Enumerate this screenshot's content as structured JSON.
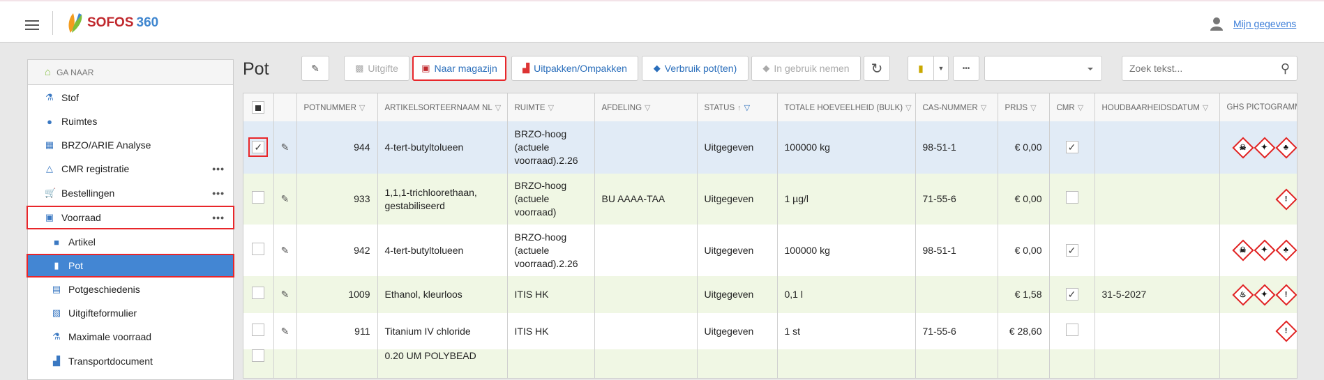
{
  "header": {
    "logo_text": "SOFOS",
    "logo_num": "360",
    "user_link": "Mijn gegevens"
  },
  "sidebar": {
    "goto": "GA NAAR",
    "items": [
      {
        "label": "Stof",
        "icon": "flask-icon",
        "glyph": "⚗",
        "more": false
      },
      {
        "label": "Ruimtes",
        "icon": "location-icon",
        "glyph": "●",
        "more": false
      },
      {
        "label": "BRZO/ARIE Analyse",
        "icon": "brzo-icon",
        "glyph": "▦",
        "more": false
      },
      {
        "label": "CMR registratie",
        "icon": "hazard-icon",
        "glyph": "△",
        "more": true
      },
      {
        "label": "Bestellingen",
        "icon": "cart-icon",
        "glyph": "🛒",
        "more": true
      },
      {
        "label": "Voorraad",
        "icon": "warehouse-icon",
        "glyph": "▣",
        "more": true,
        "boxed": true
      },
      {
        "label": "Artikel",
        "icon": "box-icon",
        "glyph": "■",
        "sub": true
      },
      {
        "label": "Pot",
        "icon": "pot-icon",
        "glyph": "▮",
        "sub": true,
        "active": true
      },
      {
        "label": "Potgeschiedenis",
        "icon": "history-icon",
        "glyph": "▤",
        "sub": true
      },
      {
        "label": "Uitgifteformulier",
        "icon": "form-icon",
        "glyph": "▧",
        "sub": true
      },
      {
        "label": "Maximale voorraad",
        "icon": "flask-icon",
        "glyph": "⚗",
        "sub": true
      },
      {
        "label": "Transportdocument",
        "icon": "truck-icon",
        "glyph": "▟",
        "sub": true
      }
    ]
  },
  "page": {
    "title": "Pot"
  },
  "toolbar": {
    "uitgifte": "Uitgifte",
    "naar_magazijn": "Naar magazijn",
    "uitpakken": "Uitpakken/Ompakken",
    "verbruik": "Verbruik pot(ten)",
    "in_gebruik": "In gebruik nemen",
    "more": "•••",
    "search_placeholder": "Zoek tekst...",
    "select_value": ""
  },
  "table": {
    "columns": [
      "",
      "",
      "POTNUMMER",
      "ARTIKELSORTEERNAAM NL",
      "RUIMTE",
      "AFDELING",
      "STATUS",
      "TOTALE HOEVEELHEID (BULK)",
      "CAS-NUMMER",
      "PRIJS",
      "CMR",
      "HOUDBAARHEIDSDATUM",
      "GHS PICTOGRAMMEN"
    ],
    "sort": {
      "column": "STATUS",
      "direction": "asc"
    },
    "rows": [
      {
        "selected": true,
        "potnummer": "944",
        "artikel": "4-tert-butyltolueen",
        "ruimte": "BRZO-hoog (actuele voorraad).2.26",
        "afdeling": "",
        "status": "Uitgegeven",
        "hoeveelheid": "100000 kg",
        "cas": "98-51-1",
        "prijs": "€ 0,00",
        "cmr": true,
        "houdbaarheid": "",
        "ghs": [
          "toxic",
          "health-hazard",
          "environment"
        ]
      },
      {
        "selected": false,
        "potnummer": "933",
        "artikel": "1,1,1-trichloorethaan, gestabiliseerd",
        "ruimte": "BRZO-hoog (actuele voorraad)",
        "afdeling": "BU AAAA-TAA",
        "status": "Uitgegeven",
        "hoeveelheid": "1 µg/l",
        "cas": "71-55-6",
        "prijs": "€ 0,00",
        "cmr": false,
        "houdbaarheid": "",
        "ghs": [
          "exclamation"
        ]
      },
      {
        "selected": false,
        "potnummer": "942",
        "artikel": "4-tert-butyltolueen",
        "ruimte": "BRZO-hoog (actuele voorraad).2.26",
        "afdeling": "",
        "status": "Uitgegeven",
        "hoeveelheid": "100000 kg",
        "cas": "98-51-1",
        "prijs": "€ 0,00",
        "cmr": true,
        "houdbaarheid": "",
        "ghs": [
          "toxic",
          "health-hazard",
          "environment"
        ]
      },
      {
        "selected": false,
        "potnummer": "1009",
        "artikel": "Ethanol, kleurloos",
        "ruimte": "ITIS HK",
        "afdeling": "",
        "status": "Uitgegeven",
        "hoeveelheid": "0,1 l",
        "cas": "",
        "prijs": "€ 1,58",
        "cmr": true,
        "houdbaarheid": "31-5-2027",
        "ghs": [
          "flammable",
          "health-hazard",
          "exclamation"
        ]
      },
      {
        "selected": false,
        "potnummer": "911",
        "artikel": "Titanium IV chloride",
        "ruimte": "ITIS HK",
        "afdeling": "",
        "status": "Uitgegeven",
        "hoeveelheid": "1 st",
        "cas": "71-55-6",
        "prijs": "€ 28,60",
        "cmr": false,
        "houdbaarheid": "",
        "ghs": [
          "exclamation"
        ]
      },
      {
        "selected": false,
        "potnummer": "",
        "artikel": "0.20 UM POLYBEAD",
        "ruimte": "",
        "afdeling": "",
        "status": "",
        "hoeveelheid": "",
        "cas": "",
        "prijs": "",
        "cmr": null,
        "houdbaarheid": "",
        "ghs": []
      }
    ]
  },
  "colors": {
    "accent": "#4386d3",
    "highlight": "#e8262a",
    "selected_row": "#e1ebf6",
    "alt_row": "#f0f7e4"
  }
}
